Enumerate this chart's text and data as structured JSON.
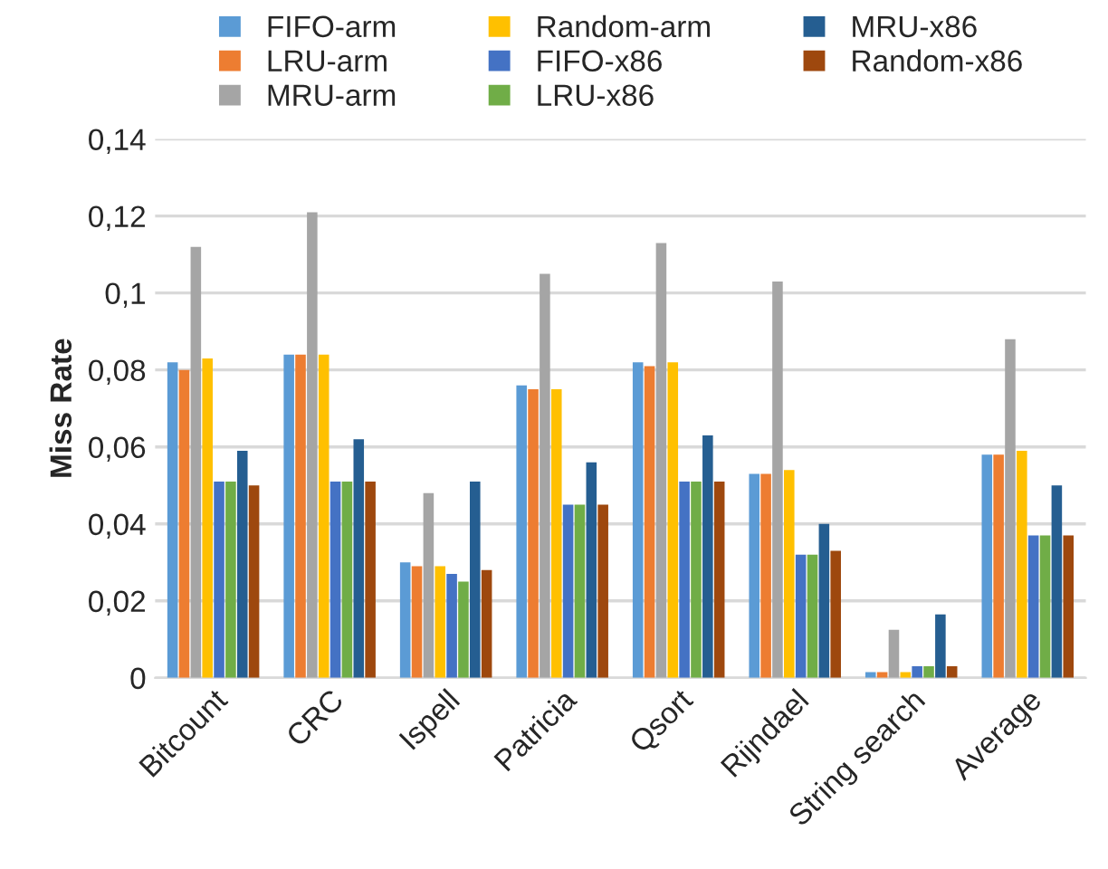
{
  "chart_data": {
    "type": "bar",
    "ylabel": "Miss Rate",
    "categories": [
      "Bitcount",
      "CRC",
      "Ispell",
      "Patricia",
      "Qsort",
      "Rijndael",
      "String search",
      "Average"
    ],
    "series": [
      {
        "name": "FIFO-arm",
        "color": "#5b9bd5",
        "values": [
          0.082,
          0.084,
          0.03,
          0.076,
          0.082,
          0.053,
          0.0015,
          0.058
        ]
      },
      {
        "name": "LRU-arm",
        "color": "#ed7d31",
        "values": [
          0.08,
          0.084,
          0.029,
          0.075,
          0.081,
          0.053,
          0.0015,
          0.058
        ]
      },
      {
        "name": "MRU-arm",
        "color": "#a5a5a5",
        "values": [
          0.112,
          0.121,
          0.048,
          0.105,
          0.113,
          0.103,
          0.0125,
          0.088
        ]
      },
      {
        "name": "Random-arm",
        "color": "#ffc000",
        "values": [
          0.083,
          0.084,
          0.029,
          0.075,
          0.082,
          0.054,
          0.0015,
          0.059
        ]
      },
      {
        "name": "FIFO-x86",
        "color": "#4472c4",
        "values": [
          0.051,
          0.051,
          0.027,
          0.045,
          0.051,
          0.032,
          0.003,
          0.037
        ]
      },
      {
        "name": "LRU-x86",
        "color": "#70ad47",
        "values": [
          0.051,
          0.051,
          0.025,
          0.045,
          0.051,
          0.032,
          0.003,
          0.037
        ]
      },
      {
        "name": "MRU-x86",
        "color": "#255e91",
        "values": [
          0.059,
          0.062,
          0.051,
          0.056,
          0.063,
          0.04,
          0.0165,
          0.05
        ]
      },
      {
        "name": "Random-x86",
        "color": "#9e480e",
        "values": [
          0.05,
          0.051,
          0.028,
          0.045,
          0.051,
          0.033,
          0.003,
          0.037
        ]
      }
    ],
    "ylim": [
      0,
      0.14
    ],
    "yticks": [
      0,
      {
        "value": 0.02,
        "label": "0,02"
      },
      {
        "value": 0.04,
        "label": "0,04"
      },
      {
        "value": 0.06,
        "label": "0,06"
      },
      {
        "value": 0.08,
        "label": "0,08"
      },
      {
        "value": 0.1,
        "label": "0,1"
      },
      {
        "value": 0.12,
        "label": "0,12"
      },
      {
        "value": 0.14,
        "label": "0,14"
      }
    ],
    "grid": "y",
    "legend": "top"
  }
}
